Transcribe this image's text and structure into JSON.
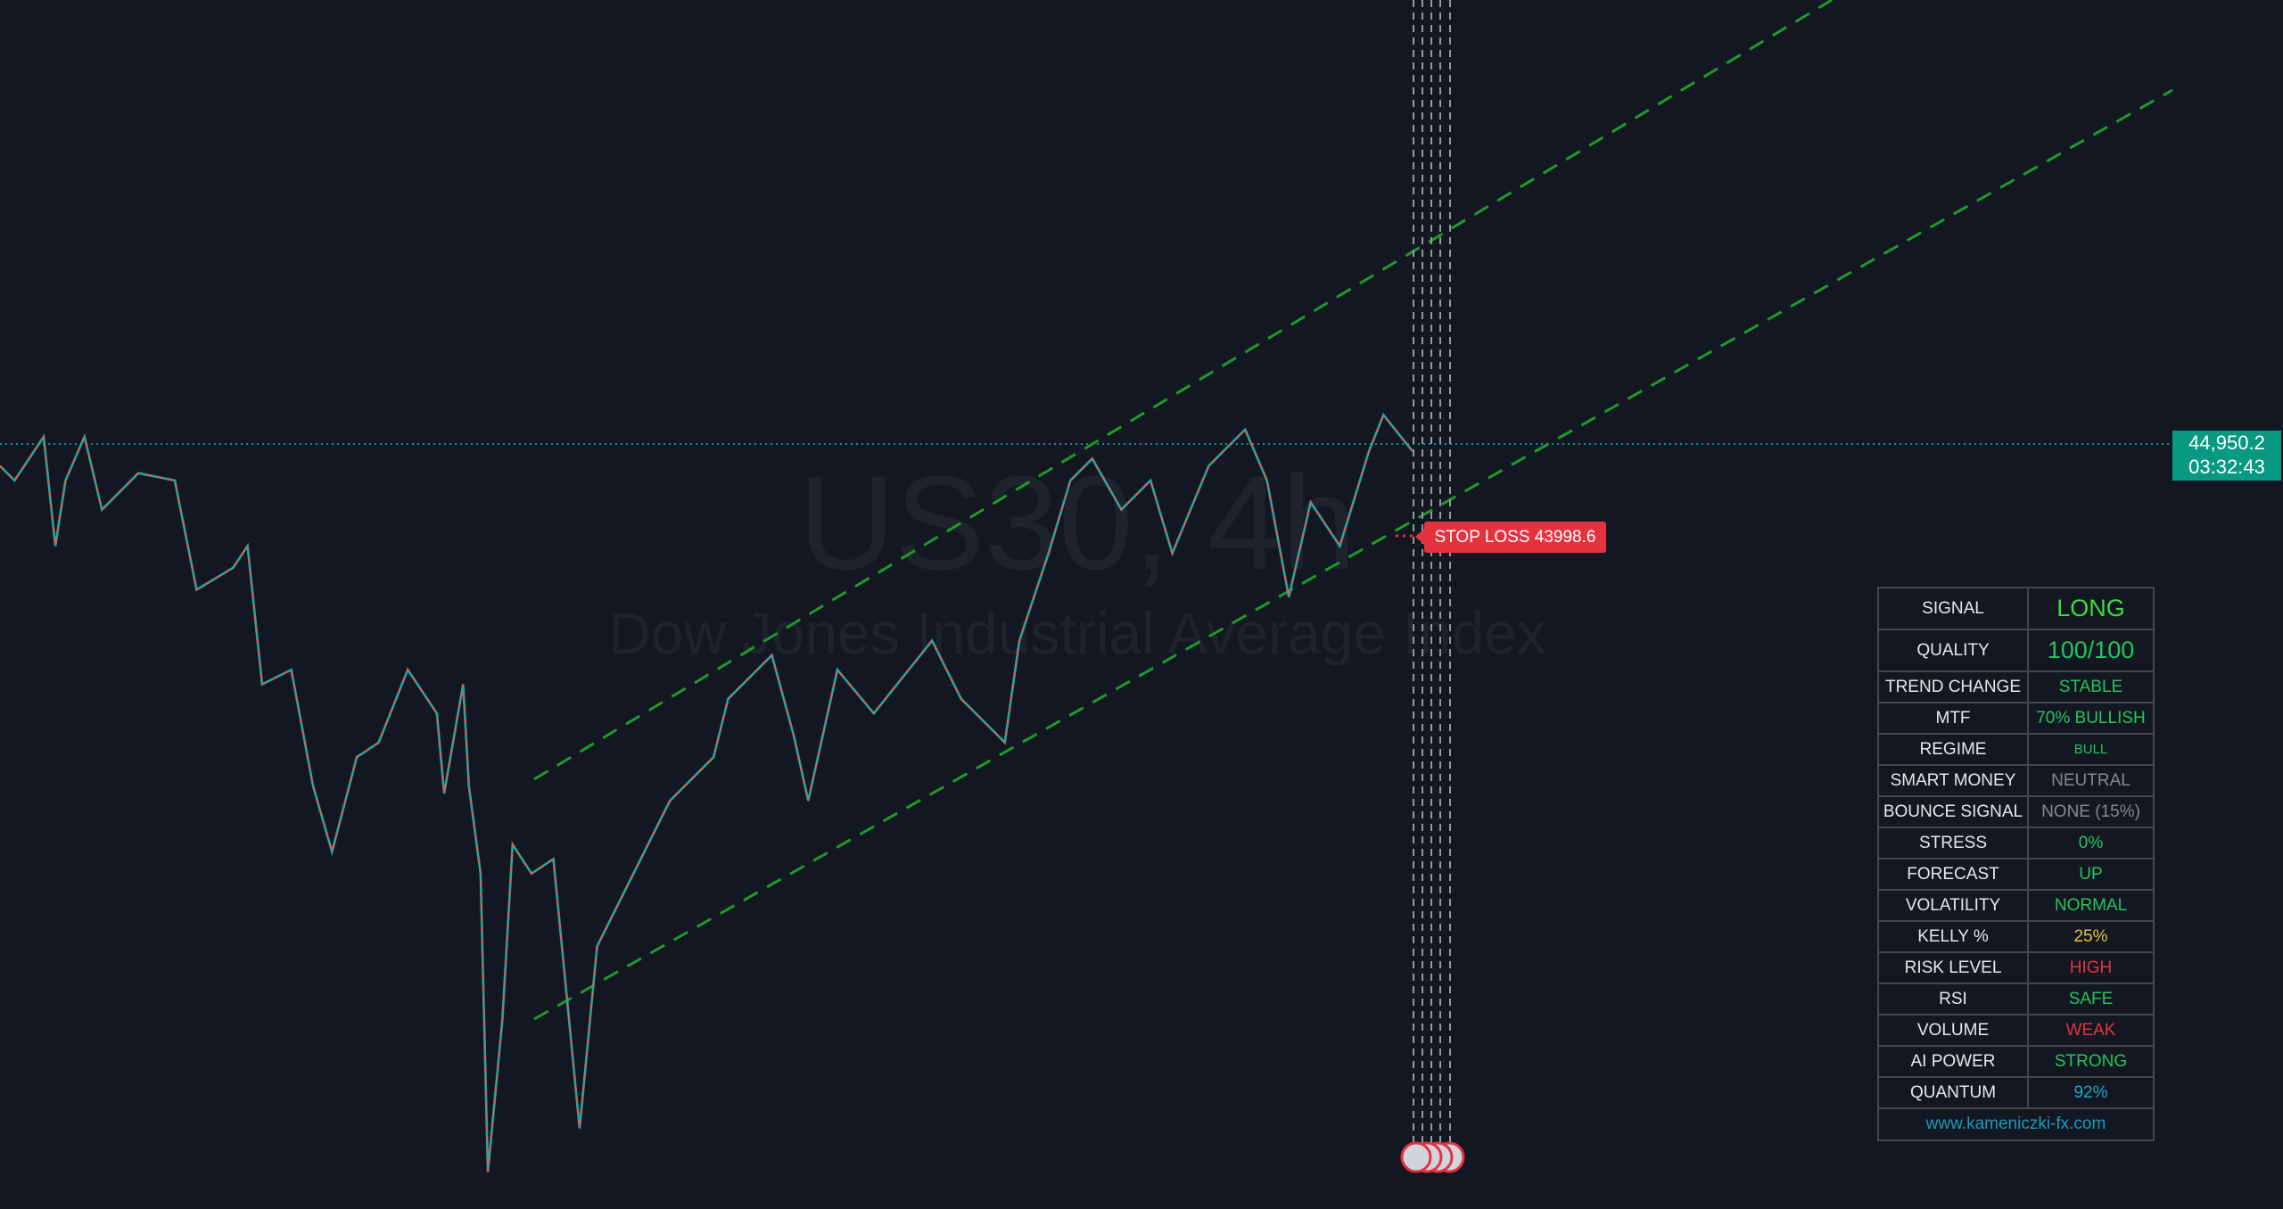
{
  "watermark": {
    "symbol": "US30, 4h",
    "description": "Dow Jones Industrial Average Index"
  },
  "price_label": {
    "price": "44,950.2",
    "countdown": "03:32:43"
  },
  "stop_loss": "STOP LOSS 43998.6",
  "table": {
    "rows": [
      [
        "SIGNAL",
        "LONG"
      ],
      [
        "QUALITY",
        "100/100"
      ],
      [
        "TREND CHANGE",
        "STABLE"
      ],
      [
        "MTF",
        "70% BULLISH"
      ],
      [
        "REGIME",
        "BULL"
      ],
      [
        "SMART MONEY",
        "NEUTRAL"
      ],
      [
        "BOUNCE SIGNAL",
        "NONE (15%)"
      ],
      [
        "STRESS",
        "0%"
      ],
      [
        "FORECAST",
        "UP"
      ],
      [
        "VOLATILITY",
        "NORMAL"
      ],
      [
        "KELLY %",
        "25%"
      ],
      [
        "RISK LEVEL",
        "HIGH"
      ],
      [
        "RSI",
        "SAFE"
      ],
      [
        "VOLUME",
        "WEAK"
      ],
      [
        "AI POWER",
        "STRONG"
      ],
      [
        "QUANTUM",
        "92%"
      ]
    ],
    "footer": "www.kameniczki-fx.com"
  }
}
